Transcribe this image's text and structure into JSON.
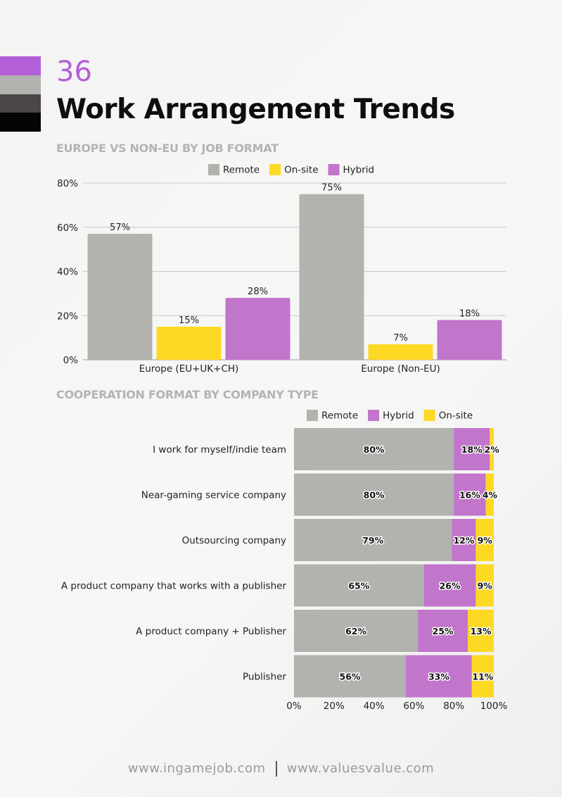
{
  "page": {
    "number": "36",
    "title": "Work Arrangement Trends"
  },
  "colors": {
    "remote": "#b2b2ae",
    "onsite": "#fdd923",
    "hybrid": "#c175cb",
    "accent": "#b35fd8",
    "swatches": [
      "#b35fd8",
      "#b2b2ae",
      "#4a4548",
      "#050505"
    ]
  },
  "chart_data": [
    {
      "type": "bar",
      "title": "EUROPE VS NON-EU BY JOB FORMAT",
      "categories": [
        "Europe (EU+UK+CH)",
        "Europe (Non-EU)"
      ],
      "series": [
        {
          "name": "Remote",
          "values": [
            57,
            75
          ]
        },
        {
          "name": "On-site",
          "values": [
            15,
            7
          ]
        },
        {
          "name": "Hybrid",
          "values": [
            28,
            18
          ]
        }
      ],
      "ylim": [
        0,
        80
      ],
      "yticks": [
        "0%",
        "20%",
        "40%",
        "60%",
        "80%"
      ],
      "legend": "top-center",
      "grid": true
    },
    {
      "type": "bar",
      "orientation": "horizontal-stacked",
      "title": "COOPERATION FORMAT BY COMPANY TYPE",
      "categories": [
        "I work for myself/indie team",
        "Near-gaming service company",
        "Outsourcing company",
        "A product company that works with a publisher",
        "A product company + Publisher",
        "Publisher"
      ],
      "series": [
        {
          "name": "Remote",
          "values": [
            80,
            80,
            79,
            65,
            62,
            56
          ]
        },
        {
          "name": "Hybrid",
          "values": [
            18,
            16,
            12,
            26,
            25,
            33
          ]
        },
        {
          "name": "On-site",
          "values": [
            2,
            4,
            9,
            9,
            13,
            11
          ]
        }
      ],
      "xlim": [
        0,
        100
      ],
      "xticks": [
        "0%",
        "20%",
        "40%",
        "60%",
        "80%",
        "100%"
      ],
      "legend": "top-center"
    }
  ],
  "footer": {
    "left": "www.ingamejob.com",
    "right": "www.valuesvalue.com"
  }
}
